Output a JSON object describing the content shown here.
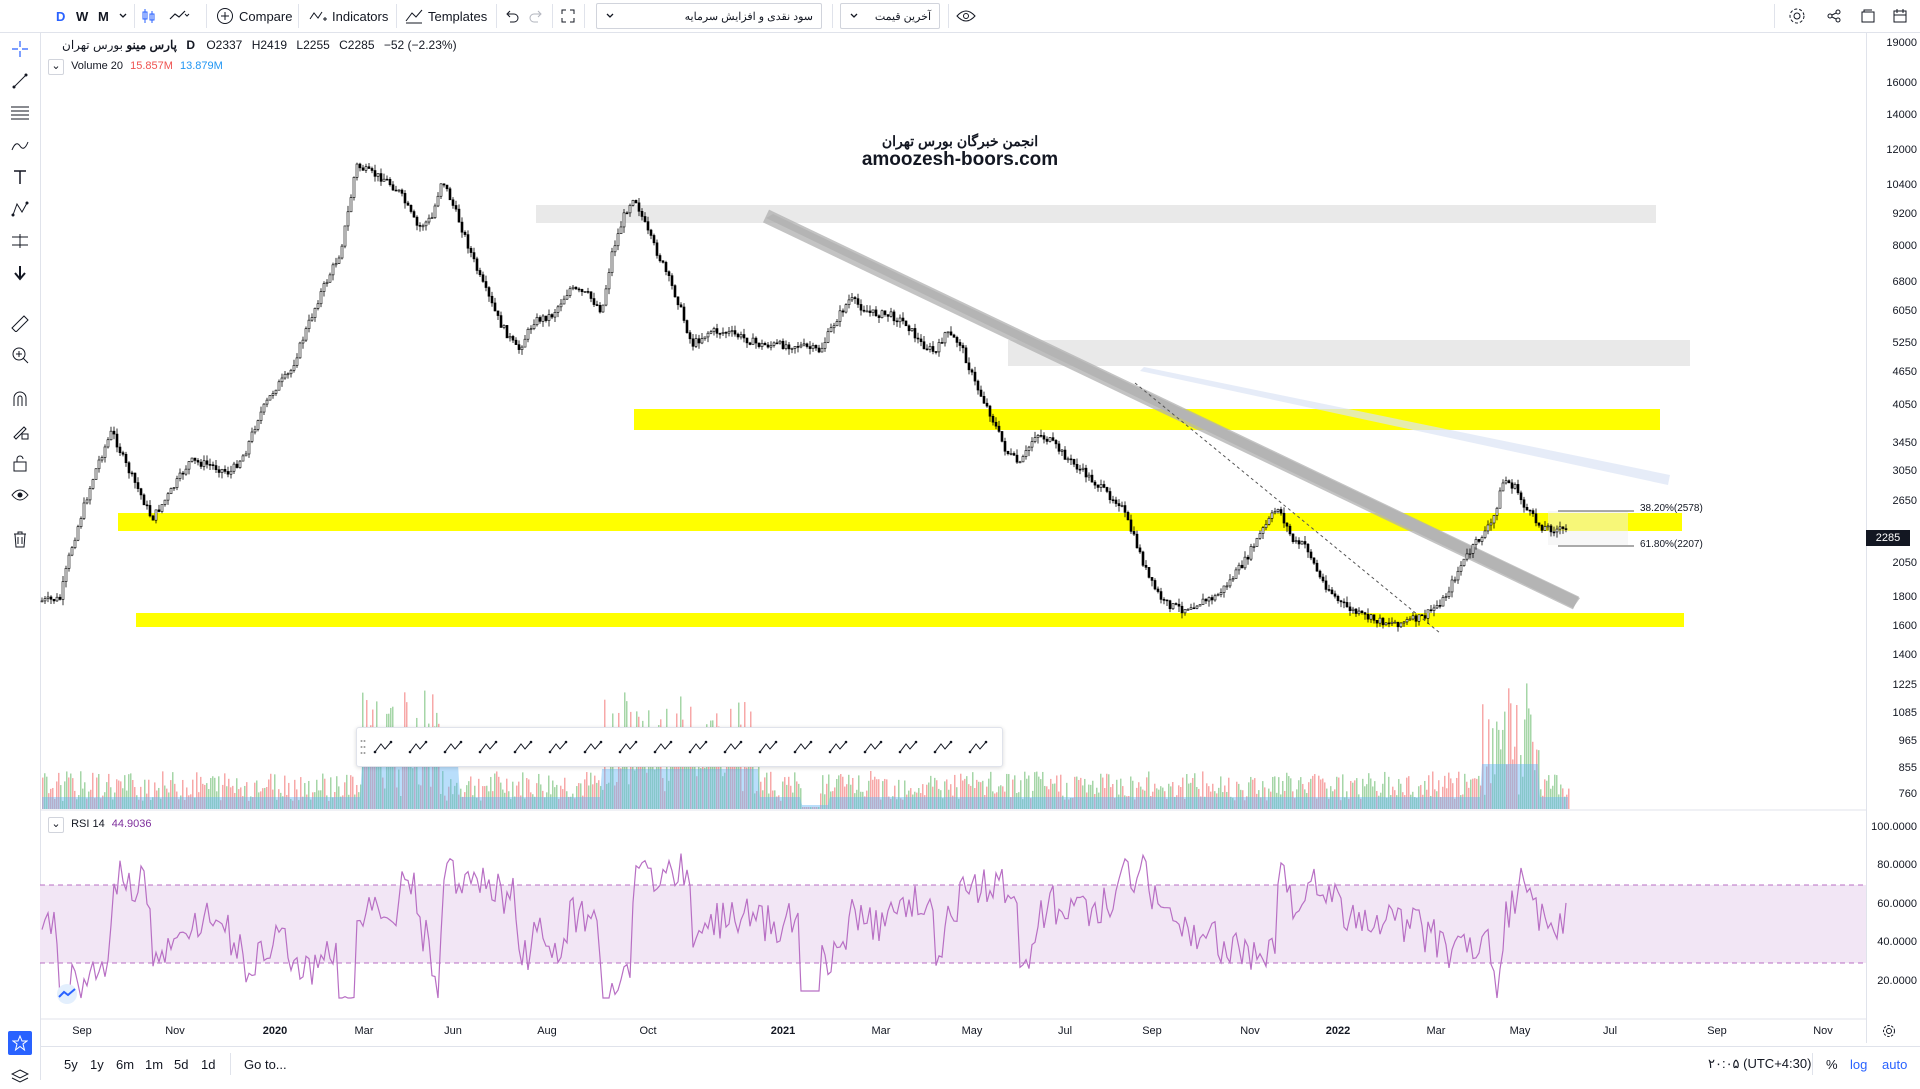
{
  "toolbar": {
    "intervals": [
      "D",
      "W",
      "M"
    ],
    "compare_label": "Compare",
    "indicators_label": "Indicators",
    "templates_label": "Templates",
    "layout_dropdown": "سود نقدی و افزایش سرمایه",
    "price_dropdown": "آخرین قیمت"
  },
  "legend": {
    "symbol": "پارس مینو",
    "exchange": "بورس تهران",
    "interval": "D",
    "open": "O2337",
    "high": "H2419",
    "low": "L2255",
    "close": "C2285",
    "change": "−52 (−2.23%)",
    "volume_label": "Volume 20",
    "volume_val1": "15.857M",
    "volume_val2": "13.879M",
    "rsi_label": "RSI 14",
    "rsi_value": "44.9036"
  },
  "watermark": {
    "line1": "انجمن خبرگان بورس تهران",
    "line2": "amoozesh-boors.com"
  },
  "price_scale": [
    "19000",
    "16000",
    "14000",
    "12000",
    "10400",
    "9200",
    "8000",
    "6800",
    "6050",
    "5250",
    "4650",
    "4050",
    "3450",
    "3050",
    "2650",
    "2285",
    "2050",
    "1800",
    "1600",
    "1400",
    "1225",
    "1085",
    "965",
    "855",
    "760"
  ],
  "last_price": "2285",
  "rsi_scale": [
    "100.0000",
    "80.0000",
    "60.0000",
    "40.0000",
    "20.0000"
  ],
  "time_labels": [
    {
      "t": "Sep",
      "b": false
    },
    {
      "t": "Nov",
      "b": false
    },
    {
      "t": "2020",
      "b": true
    },
    {
      "t": "Mar",
      "b": false
    },
    {
      "t": "Jun",
      "b": false
    },
    {
      "t": "Aug",
      "b": false
    },
    {
      "t": "Oct",
      "b": false
    },
    {
      "t": "2021",
      "b": true
    },
    {
      "t": "Mar",
      "b": false
    },
    {
      "t": "May",
      "b": false
    },
    {
      "t": "Jul",
      "b": false
    },
    {
      "t": "Sep",
      "b": false
    },
    {
      "t": "Nov",
      "b": false
    },
    {
      "t": "2022",
      "b": true
    },
    {
      "t": "Mar",
      "b": false
    },
    {
      "t": "May",
      "b": false
    },
    {
      "t": "Jul",
      "b": false
    },
    {
      "t": "Sep",
      "b": false
    },
    {
      "t": "Nov",
      "b": false
    }
  ],
  "fib": {
    "level1": "38.20%(2578)",
    "level2": "61.80%(2207)"
  },
  "bottom": {
    "ranges": [
      "5y",
      "1y",
      "6m",
      "1m",
      "5d",
      "1d"
    ],
    "goto": "Go to...",
    "timezone": "۲۰:۰۵ (UTC+4:30)",
    "pct": "%",
    "log": "log",
    "auto": "auto"
  },
  "colors": {
    "accent": "#2962ff",
    "yellow_zone": "#ffff00",
    "gray_zone": "#e6e6e6",
    "rsi_line": "#b86fc4",
    "rsi_band": "#f2e6f5",
    "vol_up": "#a5d6a7",
    "vol_down": "#f7a8a8",
    "vol_ma": "#64b5f6"
  },
  "icons": [
    "crosshair-icon",
    "trendline-icon",
    "fib-icon",
    "brush-icon",
    "text-icon",
    "pattern-icon",
    "prediction-icon",
    "arrow-down-icon",
    "ruler-icon",
    "zoom-icon",
    "magnet-icon",
    "lock-drawings-icon",
    "lock-icon",
    "eye-icon",
    "trash-icon",
    "star-icon",
    "layers-icon"
  ]
}
